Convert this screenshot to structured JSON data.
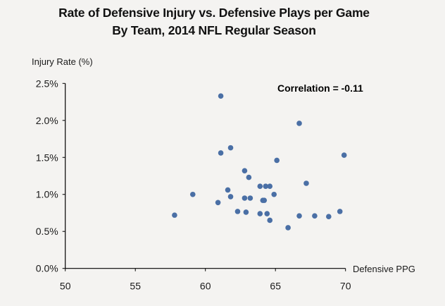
{
  "chart_data": {
    "type": "scatter",
    "title": "Rate of Defensive Injury vs. Defensive Plays per Game",
    "subtitle": "By Team, 2014 NFL Regular Season",
    "xlabel": "Defensive PPG",
    "ylabel": "Injury Rate (%)",
    "xlim": [
      50,
      70
    ],
    "ylim": [
      0.0,
      2.5
    ],
    "x_ticks": [
      50,
      55,
      60,
      65,
      70
    ],
    "x_tick_labels": [
      "50",
      "55",
      "60",
      "65",
      "70"
    ],
    "y_ticks": [
      0.0,
      0.5,
      1.0,
      1.5,
      2.0,
      2.5
    ],
    "y_tick_labels": [
      "0.0%",
      "0.5%",
      "1.0%",
      "1.5%",
      "2.0%",
      "2.5%"
    ],
    "grid": false,
    "legend": "none",
    "marker_color": "#4a6fa5",
    "annotations": [
      {
        "text": "Correlation = -0.11",
        "position": "top-right"
      }
    ],
    "points": [
      {
        "x": 61.1,
        "y": 2.33
      },
      {
        "x": 61.8,
        "y": 1.63
      },
      {
        "x": 61.1,
        "y": 1.56
      },
      {
        "x": 65.1,
        "y": 1.46
      },
      {
        "x": 66.7,
        "y": 1.96
      },
      {
        "x": 69.9,
        "y": 1.53
      },
      {
        "x": 62.8,
        "y": 1.32
      },
      {
        "x": 63.1,
        "y": 1.23
      },
      {
        "x": 63.9,
        "y": 1.11
      },
      {
        "x": 64.3,
        "y": 1.11
      },
      {
        "x": 64.6,
        "y": 1.11
      },
      {
        "x": 67.2,
        "y": 1.15
      },
      {
        "x": 64.9,
        "y": 1.0
      },
      {
        "x": 61.6,
        "y": 1.06
      },
      {
        "x": 59.1,
        "y": 1.0
      },
      {
        "x": 61.8,
        "y": 0.97
      },
      {
        "x": 62.8,
        "y": 0.95
      },
      {
        "x": 63.2,
        "y": 0.95
      },
      {
        "x": 64.1,
        "y": 0.92
      },
      {
        "x": 64.2,
        "y": 0.92
      },
      {
        "x": 60.9,
        "y": 0.89
      },
      {
        "x": 57.8,
        "y": 0.72
      },
      {
        "x": 62.3,
        "y": 0.77
      },
      {
        "x": 62.9,
        "y": 0.76
      },
      {
        "x": 63.9,
        "y": 0.74
      },
      {
        "x": 64.4,
        "y": 0.74
      },
      {
        "x": 64.6,
        "y": 0.65
      },
      {
        "x": 65.9,
        "y": 0.55
      },
      {
        "x": 66.7,
        "y": 0.71
      },
      {
        "x": 67.8,
        "y": 0.71
      },
      {
        "x": 68.8,
        "y": 0.7
      },
      {
        "x": 69.6,
        "y": 0.77
      }
    ]
  }
}
